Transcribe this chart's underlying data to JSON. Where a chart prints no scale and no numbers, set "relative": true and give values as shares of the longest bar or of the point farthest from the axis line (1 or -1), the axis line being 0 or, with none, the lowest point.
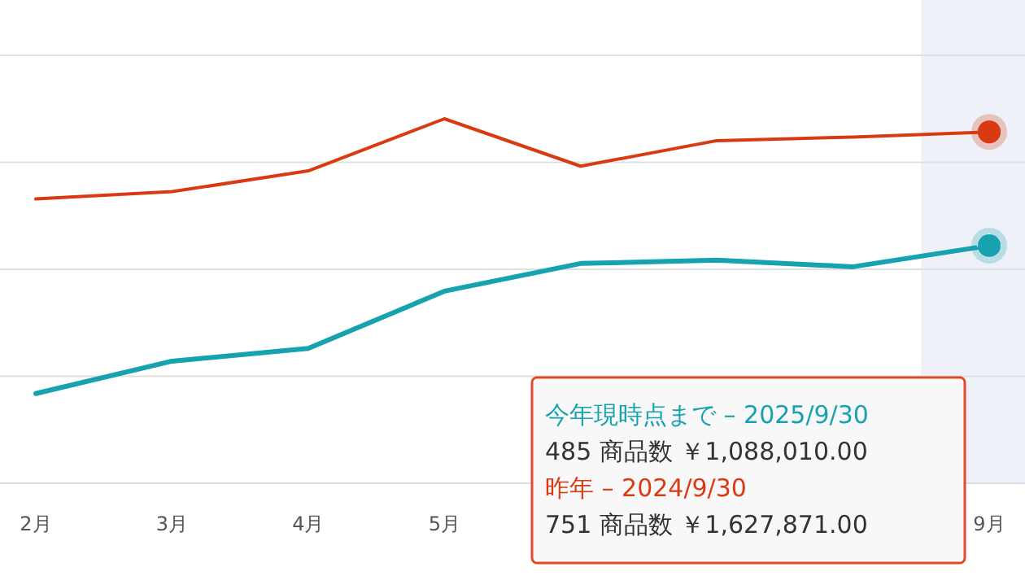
{
  "chart_data": {
    "type": "line",
    "relative": true,
    "grid": "y",
    "categories": [
      "2月",
      "3月",
      "4月",
      "5月",
      null,
      null,
      null,
      "9月"
    ],
    "series": [
      {
        "color": "#d93a12",
        "values": [
          0.78,
          0.8,
          0.857,
          1,
          0.87,
          0.94,
          0.95,
          0.964
        ]
      },
      {
        "color": "#17a2b0",
        "values": [
          0.246,
          0.335,
          0.37,
          0.527,
          0.603,
          0.612,
          0.594,
          0.652
        ]
      }
    ],
    "bands": [
      {
        "axis": "x",
        "from": "9月",
        "to": "9月",
        "color": "#eef1f7"
      }
    ],
    "annotations": [
      "今年現時点まで – 2025/9/30",
      "485 商品数 ￥1,088,010.00",
      "昨年 – 2024/9/30",
      "751 商品数 ￥1,627,871.00"
    ]
  }
}
